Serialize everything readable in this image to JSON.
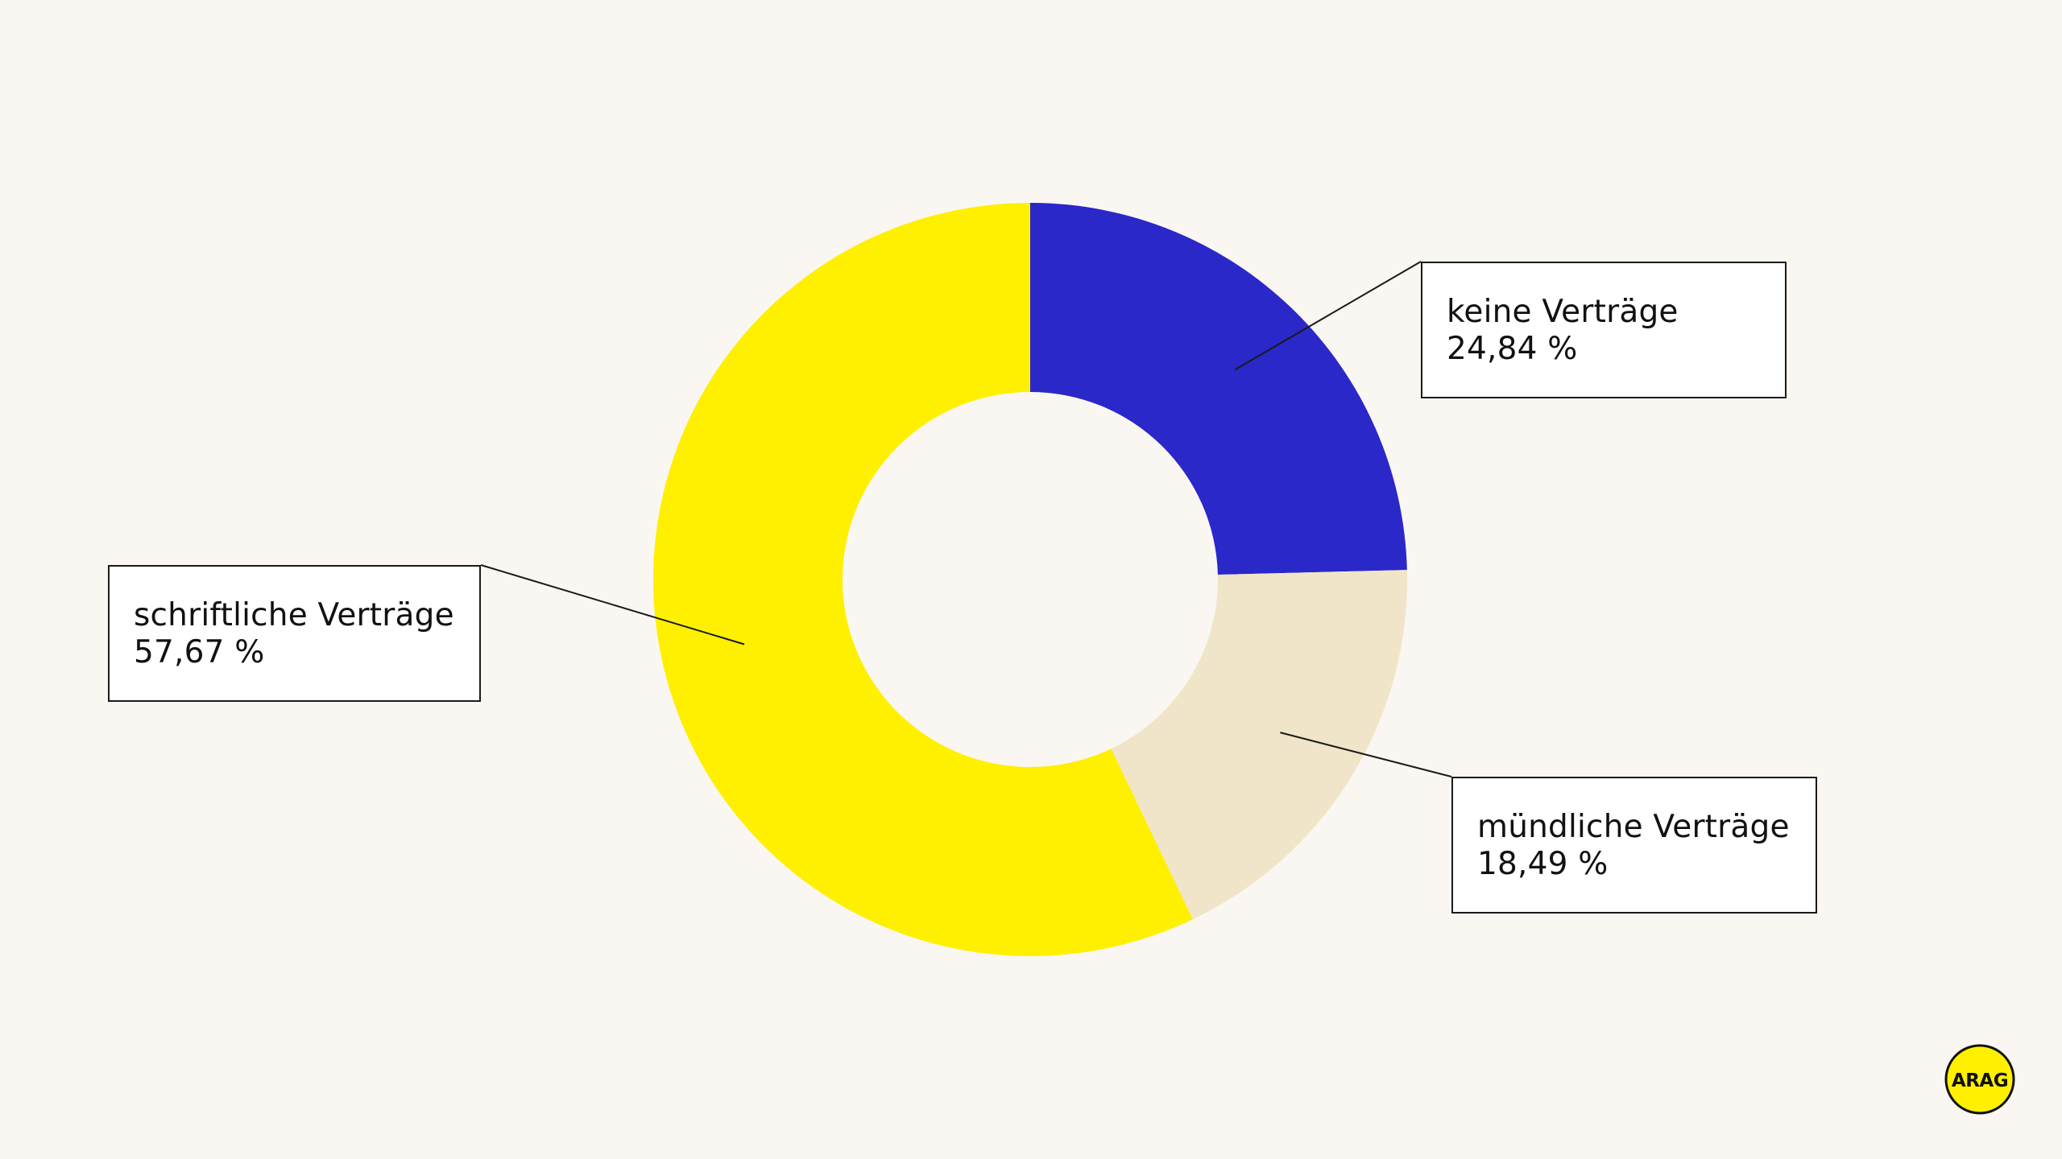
{
  "chart_data": {
    "type": "pie",
    "variant": "donut",
    "slices": [
      {
        "label": "keine Verträge",
        "value": 24.84,
        "display": "24,84 %",
        "color": "#2a28c9"
      },
      {
        "label": "mündliche Verträge",
        "value": 18.49,
        "display": "18,49 %",
        "color": "#f0e5c8"
      },
      {
        "label": "schriftliche Verträge",
        "value": 57.67,
        "display": "57,67 %",
        "color": "#fff000"
      }
    ],
    "start_angle_deg": 0,
    "direction": "clockwise",
    "legend": "callouts"
  },
  "logo": {
    "text": "ARAG",
    "color": "#fff000"
  },
  "colors": {
    "background": "#faf7f2",
    "leader_line": "#1a1a1a"
  }
}
